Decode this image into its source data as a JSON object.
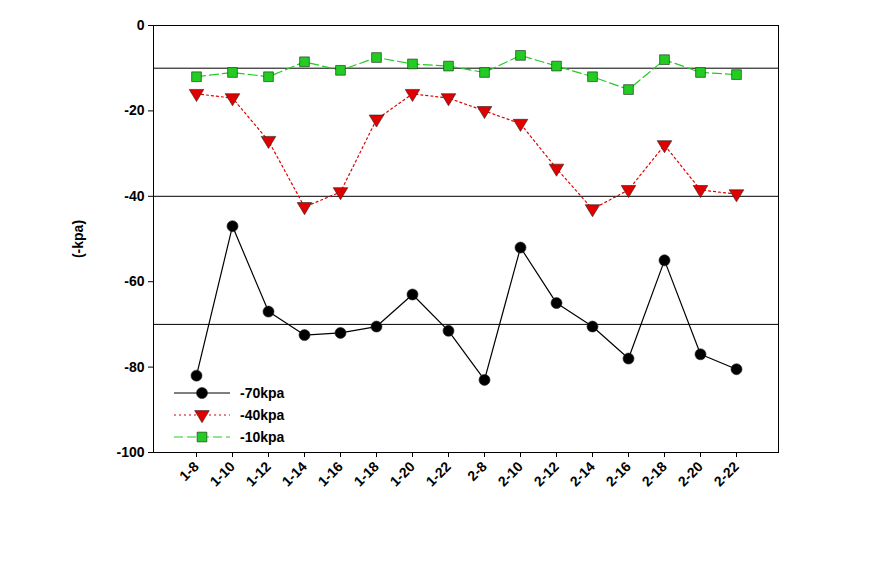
{
  "chart_data": {
    "type": "line",
    "y_label": "(-kpa)",
    "categories": [
      "1-8",
      "1-10",
      "1-12",
      "1-14",
      "1-16",
      "1-18",
      "1-20",
      "1-22",
      "2-8",
      "2-10",
      "2-12",
      "2-14",
      "2-16",
      "2-18",
      "2-20",
      "2-22"
    ],
    "series": [
      {
        "name": "-70kpa",
        "color": "#000000",
        "marker": "circle",
        "line_style": "solid",
        "values": [
          -82,
          -47,
          -67,
          -72.5,
          -72,
          -70.5,
          -63,
          -71.5,
          -83,
          -52,
          -65,
          -70.5,
          -78,
          -55,
          -77,
          -80.5
        ]
      },
      {
        "name": "-40kpa",
        "color": "#e00000",
        "marker": "triangle-down",
        "line_style": "dotted",
        "values": [
          -16,
          -17,
          -27,
          -42.5,
          -39,
          -22,
          -16,
          -17,
          -20,
          -23,
          -33.5,
          -43,
          -38.5,
          -28,
          -38.5,
          -39.5
        ]
      },
      {
        "name": "-10kpa",
        "color": "#22cc22",
        "marker": "square",
        "line_style": "dashed",
        "values": [
          -12,
          -11,
          -12,
          -8.5,
          -10.5,
          -7.5,
          -9,
          -9.5,
          -11,
          -7,
          -9.5,
          -12,
          -15,
          -8,
          -11,
          -11.5
        ]
      }
    ],
    "reference_lines": [
      -10,
      -40,
      -70
    ],
    "ylim": [
      -100,
      0
    ],
    "yticks": [
      -100,
      -80,
      -60,
      -40,
      -20,
      0
    ],
    "grid": false,
    "legend": "lower left"
  }
}
